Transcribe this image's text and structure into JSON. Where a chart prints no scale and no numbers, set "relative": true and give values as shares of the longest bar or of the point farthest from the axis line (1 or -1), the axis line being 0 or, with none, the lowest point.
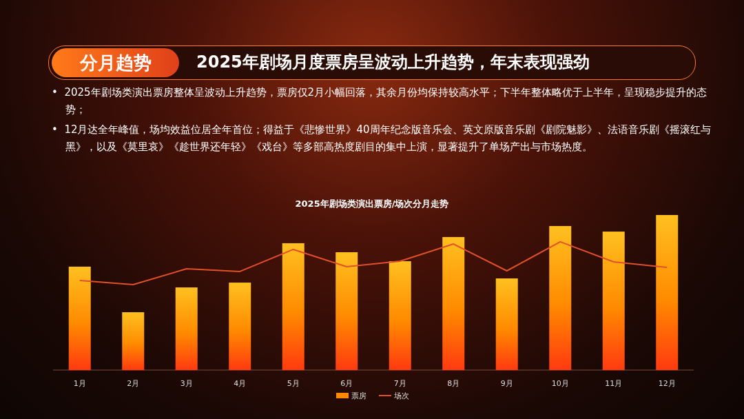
{
  "chart_data": {
    "type": "bar",
    "title": "2025年剧场类演出票房/场次分月走势",
    "annotations": [
      "分月趋势",
      "2025年剧场月度票房呈波动上升趋势，年末表现强劲",
      "•  2025年剧场类演出票房整体呈波动上升趋势，票房仅2月小幅回落，其余月份均保持较高水平；下半年整体略优于上半年，呈现稳步提升的态势；",
      "•  12月达全年峰值，场均效益位居全年首位；得益于《悲惨世界》40周年纪念版音乐会、英文原版音乐剧《剧院魅影》、法语音乐剧《摇滚红与黑》，以及《莫里哀》《趁世界还年轻》《戏台》等多部高热度剧目的集中上演，显著提升了单场产出与市场热度。"
    ],
    "categories": [
      "1月",
      "2月",
      "3月",
      "4月",
      "5月",
      "6月",
      "7月",
      "8月",
      "9月",
      "10月",
      "11月",
      "12月"
    ],
    "relative": true,
    "legend": "bottom",
    "grid": false,
    "series": [
      {
        "name": "票房",
        "color": "#ff8a00",
        "values": [
          0.667,
          0.373,
          0.533,
          0.564,
          0.818,
          0.76,
          0.702,
          0.858,
          0.591,
          0.929,
          0.893,
          1
        ]
      },
      {
        "name": "场次",
        "type": "line",
        "color": "#e0502a",
        "values": [
          0.578,
          0.551,
          0.653,
          0.636,
          0.778,
          0.667,
          0.702,
          0.813,
          0.64,
          0.827,
          0.698,
          0.662
        ]
      }
    ]
  }
}
